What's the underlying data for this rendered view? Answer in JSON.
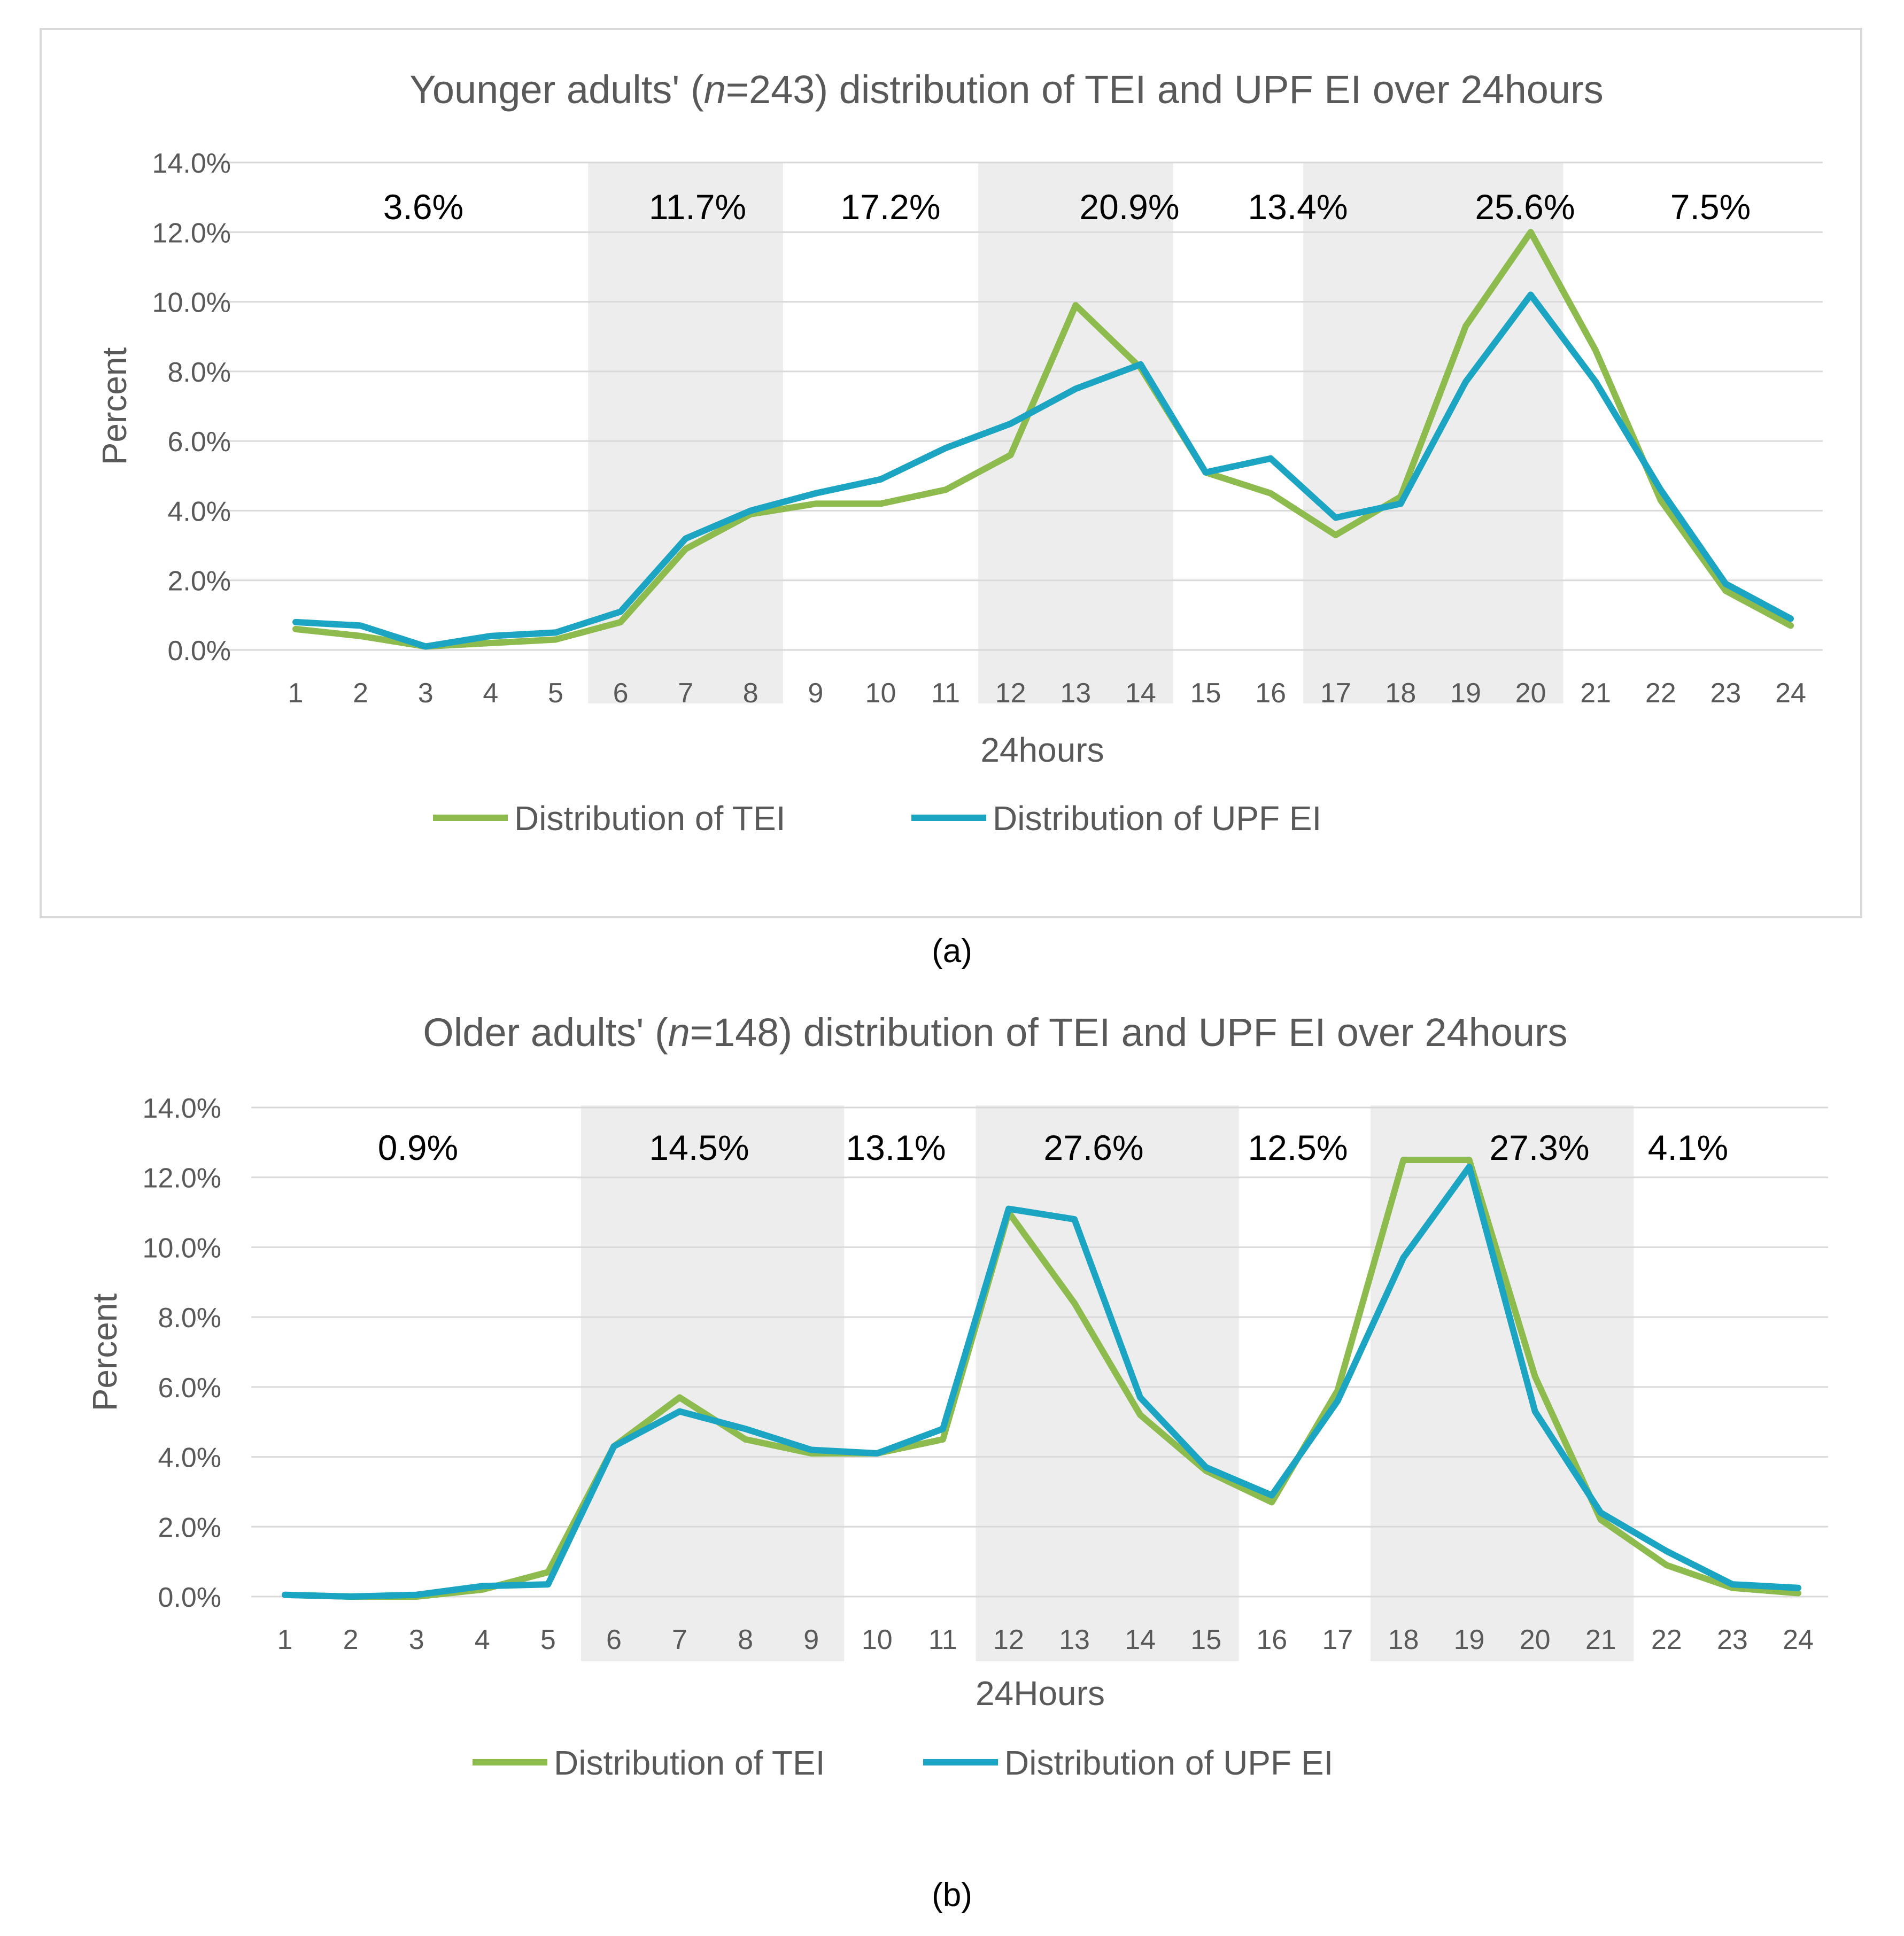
{
  "chart_data": [
    {
      "type": "line",
      "title_prefix": "Younger adults' (",
      "title_n": "n",
      "title_suffix": "=243) distribution of TEI and UPF EI over  24hours",
      "xlabel": "24hours",
      "ylabel": "Percent",
      "ylim": [
        0,
        14
      ],
      "yticks": [
        "0.0%",
        "2.0%",
        "4.0%",
        "6.0%",
        "8.0%",
        "10.0%",
        "12.0%",
        "14.0%"
      ],
      "categories": [
        "1",
        "2",
        "3",
        "4",
        "5",
        "6",
        "7",
        "8",
        "9",
        "10",
        "11",
        "12",
        "13",
        "14",
        "15",
        "16",
        "17",
        "18",
        "19",
        "20",
        "21",
        "22",
        "23",
        "24"
      ],
      "series": [
        {
          "name": "Distribution of TEI",
          "color": "#8DBB4E",
          "values": [
            0.6,
            0.4,
            0.1,
            0.2,
            0.3,
            0.8,
            2.9,
            3.9,
            4.2,
            4.2,
            4.6,
            5.6,
            9.9,
            8.1,
            5.1,
            4.5,
            3.3,
            4.4,
            9.3,
            12.0,
            8.6,
            4.3,
            1.7,
            0.7
          ]
        },
        {
          "name": "Distribution of UPF EI",
          "color": "#1BA5C2",
          "values": [
            0.8,
            0.7,
            0.1,
            0.4,
            0.5,
            1.1,
            3.2,
            4.0,
            4.5,
            4.9,
            5.8,
            6.5,
            7.5,
            8.2,
            5.1,
            5.5,
            3.8,
            4.2,
            7.7,
            10.2,
            7.7,
            4.6,
            1.9,
            0.9
          ]
        }
      ],
      "bands": [
        {
          "from": "6",
          "to": "8"
        },
        {
          "from": "12",
          "to": "14"
        },
        {
          "from": "17",
          "to": "20"
        }
      ],
      "annotations": [
        "3.6%",
        "11.7%",
        "17.2%",
        "20.9%",
        "13.4%",
        "25.6%",
        "7.5%"
      ],
      "legend_position": "bottom",
      "caption": "(a)"
    },
    {
      "type": "line",
      "title_prefix": "Older adults' (",
      "title_n": "n",
      "title_suffix": "=148) distribution of TEI and UPF EI over 24hours",
      "xlabel": "24Hours",
      "ylabel": "Percent",
      "ylim": [
        0,
        14
      ],
      "yticks": [
        "0.0%",
        "2.0%",
        "4.0%",
        "6.0%",
        "8.0%",
        "10.0%",
        "12.0%",
        "14.0%"
      ],
      "categories": [
        "1",
        "2",
        "3",
        "4",
        "5",
        "6",
        "7",
        "8",
        "9",
        "10",
        "11",
        "12",
        "13",
        "14",
        "15",
        "16",
        "17",
        "18",
        "19",
        "20",
        "21",
        "22",
        "23",
        "24"
      ],
      "series": [
        {
          "name": "Distribution of TEI",
          "color": "#8DBB4E",
          "values": [
            0.05,
            0.0,
            0.0,
            0.2,
            0.7,
            4.3,
            5.7,
            4.5,
            4.1,
            4.1,
            4.5,
            11.0,
            8.4,
            5.2,
            3.6,
            2.7,
            5.9,
            12.5,
            12.5,
            6.3,
            2.2,
            0.9,
            0.25,
            0.1
          ]
        },
        {
          "name": "Distribution of UPF EI",
          "color": "#1BA5C2",
          "values": [
            0.05,
            0.0,
            0.05,
            0.3,
            0.35,
            4.3,
            5.3,
            4.8,
            4.2,
            4.1,
            4.8,
            11.1,
            10.8,
            5.7,
            3.7,
            2.9,
            5.6,
            9.7,
            12.3,
            5.3,
            2.4,
            1.3,
            0.35,
            0.25
          ]
        }
      ],
      "bands": [
        {
          "from": "6",
          "to": "9"
        },
        {
          "from": "12",
          "to": "15"
        },
        {
          "from": "18",
          "to": "21"
        }
      ],
      "annotations": [
        "0.9%",
        "14.5%",
        "13.1%",
        "27.6%",
        "12.5%",
        "27.3%",
        "4.1%"
      ],
      "legend_position": "bottom",
      "caption": "(b)"
    }
  ]
}
